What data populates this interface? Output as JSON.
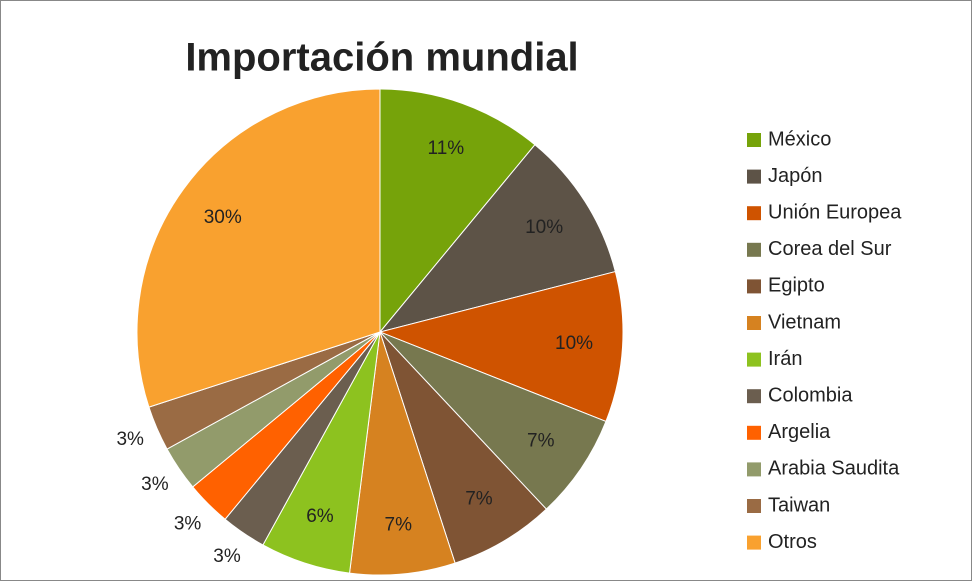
{
  "chart_data": {
    "type": "pie",
    "title": "Importación mundial",
    "categories": [
      "México",
      "Japón",
      "Unión Europea",
      "Corea del Sur",
      "Egipto",
      "Vietnam",
      "Irán",
      "Colombia",
      "Argelia",
      "Arabia Saudita",
      "Taiwan",
      "Otros"
    ],
    "values": [
      11,
      10,
      10,
      7,
      7,
      7,
      6,
      3,
      3,
      3,
      3,
      30
    ],
    "value_labels": [
      "11%",
      "10%",
      "10%",
      "7%",
      "7%",
      "7%",
      "6%",
      "3%",
      "3%",
      "3%",
      "3%",
      "30%"
    ],
    "colors": [
      "#76a30a",
      "#5d5347",
      "#cf5300",
      "#77784f",
      "#7f5434",
      "#d68220",
      "#8dc21f",
      "#6b5e4f",
      "#ff6100",
      "#929b6b",
      "#9a6b44",
      "#f9a12f"
    ],
    "legend": "right"
  }
}
